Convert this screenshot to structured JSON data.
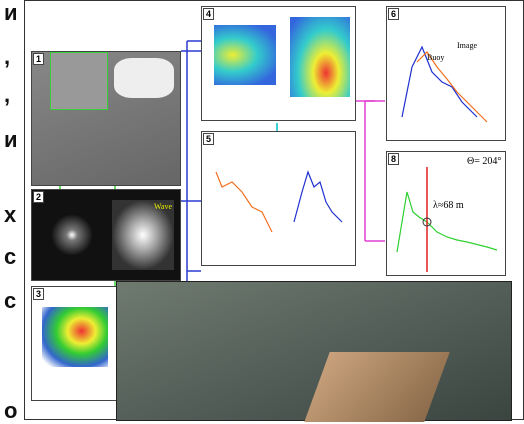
{
  "left_text": [
    "и",
    ",",
    ",",
    "и",
    "х",
    "с",
    "с",
    "о"
  ],
  "panels": [
    "1",
    "2",
    "3",
    "4",
    "5",
    "6",
    "8"
  ],
  "annotations": {
    "wave": "Wave",
    "image": "Image",
    "buoy": "Buoy",
    "theta": "Θ= 204°",
    "lambda": "λ≈68 m"
  }
}
